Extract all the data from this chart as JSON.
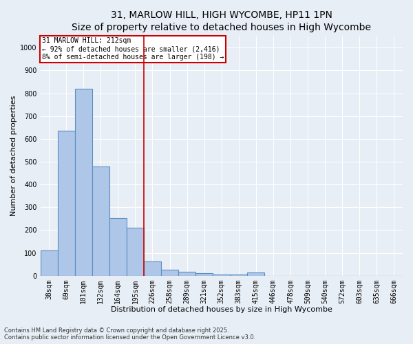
{
  "title_line1": "31, MARLOW HILL, HIGH WYCOMBE, HP11 1PN",
  "title_line2": "Size of property relative to detached houses in High Wycombe",
  "xlabel": "Distribution of detached houses by size in High Wycombe",
  "ylabel": "Number of detached properties",
  "footnote": "Contains HM Land Registry data © Crown copyright and database right 2025.\nContains public sector information licensed under the Open Government Licence v3.0.",
  "bar_labels": [
    "38sqm",
    "69sqm",
    "101sqm",
    "132sqm",
    "164sqm",
    "195sqm",
    "226sqm",
    "258sqm",
    "289sqm",
    "321sqm",
    "352sqm",
    "383sqm",
    "415sqm",
    "446sqm",
    "478sqm",
    "509sqm",
    "540sqm",
    "572sqm",
    "603sqm",
    "635sqm",
    "666sqm"
  ],
  "bar_values": [
    110,
    635,
    820,
    480,
    253,
    210,
    63,
    25,
    18,
    10,
    5,
    5,
    13,
    0,
    0,
    0,
    0,
    0,
    0,
    0,
    0
  ],
  "bar_color": "#aec6e8",
  "bar_edge_color": "#5a8fc0",
  "bar_edge_width": 0.8,
  "red_line_x": 5.5,
  "annotation_line1": "31 MARLOW HILL: 212sqm",
  "annotation_line2": "← 92% of detached houses are smaller (2,416)",
  "annotation_line3": "8% of semi-detached houses are larger (198) →",
  "annotation_box_color": "#ffffff",
  "annotation_box_edge_color": "#cc0000",
  "red_line_color": "#cc0000",
  "ylim": [
    0,
    1050
  ],
  "yticks": [
    0,
    100,
    200,
    300,
    400,
    500,
    600,
    700,
    800,
    900,
    1000
  ],
  "background_color": "#e8eef5",
  "grid_color": "#ffffff",
  "title_fontsize": 10,
  "subtitle_fontsize": 9,
  "axis_label_fontsize": 8,
  "tick_fontsize": 7,
  "annotation_fontsize": 7,
  "ylabel_fontsize": 8,
  "footnote_fontsize": 6
}
